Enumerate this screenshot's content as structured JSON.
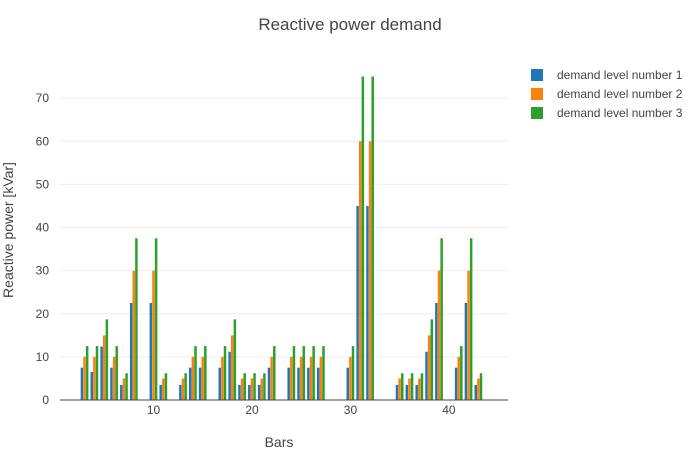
{
  "chart_data": {
    "type": "bar",
    "title": "Reactive power demand",
    "xlabel": "Bars",
    "ylabel": "Reactive power [kVar]",
    "x_range": [
      0.5,
      46
    ],
    "ylim": [
      0,
      80
    ],
    "x_ticks": [
      10,
      20,
      30,
      40
    ],
    "y_ticks": [
      0,
      10,
      20,
      30,
      40,
      50,
      60,
      70
    ],
    "grid": true,
    "legend_position": "top-right",
    "x": [
      2,
      3,
      4,
      5,
      6,
      7,
      8,
      9,
      10,
      11,
      12,
      13,
      14,
      15,
      16,
      17,
      18,
      19,
      20,
      21,
      22,
      23,
      24,
      25,
      26,
      27,
      28,
      29,
      30,
      31,
      32,
      33,
      34,
      35,
      36,
      37,
      38,
      39,
      40,
      41,
      42,
      43,
      44,
      45,
      46
    ],
    "series": [
      {
        "name": "demand level number 1",
        "color": "#1f77b4",
        "values": [
          0,
          7.5,
          6.5,
          12.4,
          7.5,
          3.5,
          22.5,
          0,
          22.5,
          3.5,
          0,
          3.5,
          7.5,
          7.5,
          0,
          7.5,
          11.2,
          3.5,
          3.5,
          3.5,
          7.5,
          0,
          7.5,
          7.5,
          7.5,
          7.5,
          0,
          0,
          7.5,
          45,
          45,
          0,
          0,
          3.5,
          3.5,
          3.5,
          11.2,
          22.5,
          0,
          7.5,
          22.5,
          3.5,
          0,
          0,
          0
        ]
      },
      {
        "name": "demand level number 2",
        "color": "#ff7f0e",
        "values": [
          0,
          10,
          10,
          15,
          10,
          5,
          30,
          0,
          30,
          5,
          0,
          5,
          10,
          10,
          0,
          10,
          15,
          5,
          5,
          5,
          10,
          0,
          10,
          10,
          10,
          10,
          0,
          0,
          10,
          60,
          60,
          0,
          0,
          5,
          5,
          5,
          15,
          30,
          0,
          10,
          30,
          5,
          0,
          0,
          0
        ]
      },
      {
        "name": "demand level number 3",
        "color": "#2ca02c",
        "values": [
          0,
          12.5,
          12.5,
          18.7,
          12.5,
          6.2,
          37.5,
          0,
          37.5,
          6.2,
          0,
          6.2,
          12.5,
          12.5,
          0,
          12.5,
          18.7,
          6.2,
          6.2,
          6.2,
          12.5,
          0,
          12.5,
          12.5,
          12.5,
          12.5,
          0,
          0,
          12.5,
          75,
          75,
          0,
          0,
          6.2,
          6.2,
          6.2,
          18.7,
          37.5,
          0,
          12.5,
          37.5,
          6.2,
          0,
          0,
          0
        ]
      }
    ]
  }
}
